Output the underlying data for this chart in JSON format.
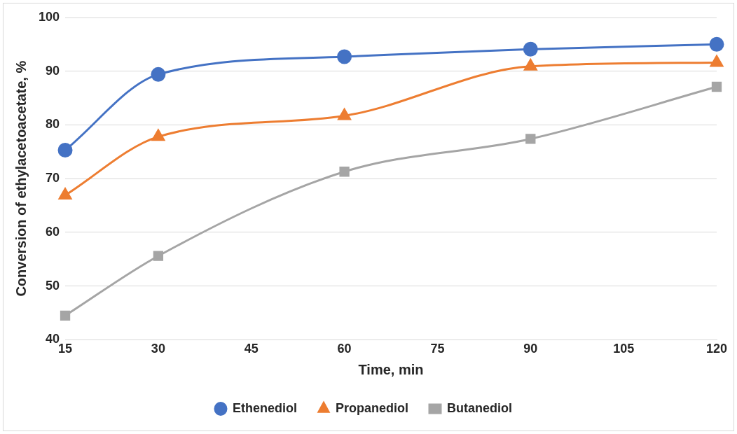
{
  "chart_data": {
    "type": "line",
    "xlabel": "Time, min",
    "ylabel": "Conversion of ethylacetoacetate, %",
    "x": [
      15,
      30,
      60,
      90,
      120
    ],
    "xlim": [
      15,
      120
    ],
    "xticks": [
      15,
      30,
      45,
      60,
      75,
      90,
      105,
      120
    ],
    "ylim": [
      40,
      100
    ],
    "yticks": [
      40,
      50,
      60,
      70,
      80,
      90,
      100
    ],
    "grid": "y",
    "legend": "bottom",
    "series": [
      {
        "name": "Ethenediol",
        "color": "#4472c4",
        "marker": "circle",
        "values": [
          75.3,
          89.4,
          92.7,
          94.1,
          95.0
        ]
      },
      {
        "name": "Propanediol",
        "color": "#ed7d31",
        "marker": "triangle",
        "values": [
          66.9,
          77.8,
          81.7,
          90.9,
          91.6
        ]
      },
      {
        "name": "Butanediol",
        "color": "#a5a5a5",
        "marker": "square",
        "values": [
          44.5,
          55.6,
          71.3,
          77.4,
          87.1
        ]
      }
    ]
  }
}
